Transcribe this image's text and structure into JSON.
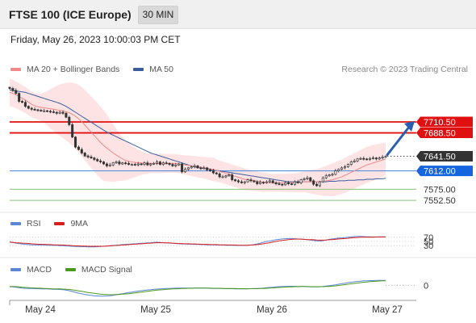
{
  "header": {
    "title": "FTSE 100 (ICE Europe)",
    "timeframe": "30 MIN"
  },
  "datetime": "Friday, May 26, 2023 10:00:03 PM CET",
  "research": "Research © 2023 Trading Central",
  "legends": {
    "price": [
      {
        "label": "MA 20 + Bollinger Bands",
        "color": "#f08a8a"
      },
      {
        "label": "MA 50",
        "color": "#3b5f9e"
      }
    ],
    "rsi": [
      {
        "label": "RSI",
        "color": "#5b86d6"
      },
      {
        "label": "9MA",
        "color": "#d81e1e"
      }
    ],
    "macd": [
      {
        "label": "MACD",
        "color": "#5b86d6"
      },
      {
        "label": "MACD Signal",
        "color": "#4a9a1e"
      }
    ]
  },
  "colors": {
    "resistance": "#e01010",
    "support": "#8bc37a",
    "pivot": "#5b8fe0",
    "band_fill": "#fde0e0",
    "candle": "#333333",
    "arrow": "#2a5fb0",
    "current_tag": "#333333",
    "pivot_tag": "#1565e0"
  },
  "chart_data": [
    {
      "type": "candlestick",
      "title": "FTSE 100 (ICE Europe) 30 MIN",
      "x_ticks": [
        "May 24",
        "May 25",
        "May 26",
        "May 27"
      ],
      "ylim": [
        7530,
        7800
      ],
      "levels": [
        {
          "value": 7710.5,
          "label": "7710.50",
          "kind": "resistance"
        },
        {
          "value": 7688.5,
          "label": "7688.50",
          "kind": "resistance"
        },
        {
          "value": 7641.5,
          "label": "7641.50",
          "kind": "current"
        },
        {
          "value": 7612.0,
          "label": "7612.00",
          "kind": "pivot"
        },
        {
          "value": 7575.0,
          "label": "7575.00",
          "kind": "support"
        },
        {
          "value": 7552.5,
          "label": "7552.50",
          "kind": "support"
        }
      ],
      "close": [
        7778,
        7774,
        7768,
        7752,
        7750,
        7742,
        7738,
        7736,
        7735,
        7734,
        7733,
        7733,
        7732,
        7731,
        7730,
        7728,
        7730,
        7728,
        7720,
        7705,
        7680,
        7660,
        7655,
        7648,
        7642,
        7640,
        7638,
        7635,
        7632,
        7630,
        7626,
        7622,
        7624,
        7628,
        7630,
        7626,
        7628,
        7627,
        7625,
        7625,
        7624,
        7626,
        7625,
        7628,
        7624,
        7626,
        7627,
        7630,
        7625,
        7628,
        7627,
        7625,
        7622,
        7624,
        7626,
        7610,
        7615,
        7618,
        7620,
        7622,
        7618,
        7617,
        7618,
        7614,
        7612,
        7608,
        7606,
        7600,
        7600,
        7602,
        7604,
        7594,
        7592,
        7590,
        7588,
        7590,
        7594,
        7592,
        7590,
        7586,
        7589,
        7588,
        7590,
        7592,
        7588,
        7586,
        7585,
        7584,
        7588,
        7586,
        7585,
        7590,
        7588,
        7594,
        7596,
        7598,
        7592,
        7585,
        7582,
        7590,
        7598,
        7602,
        7604,
        7605,
        7612,
        7615,
        7618,
        7620,
        7625,
        7630,
        7632,
        7636,
        7637,
        7636,
        7635,
        7637,
        7638,
        7636,
        7638,
        7640,
        7641
      ],
      "ma20": [
        7770,
        7768,
        7765,
        7762,
        7758,
        7755,
        7750,
        7746,
        7743,
        7741,
        7740,
        7739,
        7738,
        7737,
        7736,
        7735,
        7734,
        7733,
        7731,
        7729,
        7726,
        7722,
        7717,
        7711,
        7704,
        7697,
        7690,
        7683,
        7676,
        7669,
        7663,
        7658,
        7653,
        7648,
        7644,
        7640,
        7636,
        7633,
        7631,
        7630,
        7629,
        7628,
        7628,
        7627,
        7627,
        7627,
        7627,
        7627,
        7627,
        7627,
        7627,
        7627,
        7627,
        7627,
        7626,
        7625,
        7624,
        7623,
        7622,
        7621,
        7620,
        7619,
        7618,
        7617,
        7616,
        7615,
        7613,
        7611,
        7609,
        7607,
        7605,
        7603,
        7601,
        7599,
        7597,
        7595,
        7594,
        7593,
        7592,
        7591,
        7590,
        7589,
        7589,
        7588,
        7588,
        7588,
        7588,
        7588,
        7588,
        7588,
        7588,
        7588,
        7588,
        7589,
        7590,
        7590,
        7590,
        7590,
        7590,
        7590,
        7591,
        7592,
        7593,
        7594,
        7596,
        7598,
        7600,
        7603,
        7606,
        7609,
        7612,
        7615,
        7618,
        7621,
        7624,
        7626,
        7628,
        7630,
        7632,
        7634,
        7636
      ],
      "ma50": [
        7775,
        7774,
        7773,
        7772,
        7771,
        7770,
        7768,
        7766,
        7764,
        7762,
        7760,
        7758,
        7756,
        7754,
        7752,
        7750,
        7748,
        7745,
        7742,
        7738,
        7734,
        7730,
        7726,
        7722,
        7718,
        7714,
        7710,
        7706,
        7702,
        7698,
        7694,
        7690,
        7687,
        7684,
        7681,
        7678,
        7675,
        7672,
        7669,
        7666,
        7663,
        7660,
        7657,
        7654,
        7651,
        7648,
        7646,
        7644,
        7642,
        7640,
        7638,
        7636,
        7634,
        7632,
        7630,
        7628,
        7626,
        7624,
        7622,
        7620,
        7619,
        7618,
        7617,
        7616,
        7615,
        7614,
        7613,
        7612,
        7611,
        7610,
        7609,
        7608,
        7607,
        7606,
        7605,
        7604,
        7603,
        7602,
        7601,
        7600,
        7599,
        7598,
        7597,
        7596,
        7595,
        7594,
        7593,
        7592,
        7591,
        7590,
        7590,
        7590,
        7590,
        7590,
        7590,
        7590,
        7590,
        7590,
        7590,
        7590,
        7590,
        7590,
        7591,
        7591,
        7591,
        7592,
        7592,
        7592,
        7593,
        7593,
        7593,
        7594,
        7594,
        7594,
        7595,
        7595,
        7595,
        7596,
        7596,
        7596,
        7597
      ]
    },
    {
      "type": "line",
      "title": "RSI",
      "yticks": [
        70,
        50,
        30
      ],
      "ylim": [
        0,
        100
      ],
      "series": [
        {
          "name": "RSI",
          "values": [
            48,
            45,
            42,
            40,
            38,
            36,
            35,
            34,
            34,
            33,
            33,
            33,
            32,
            32,
            31,
            31,
            30,
            30,
            29,
            28,
            27,
            26,
            26,
            25,
            25,
            24,
            24,
            24,
            25,
            26,
            27,
            28,
            30,
            31,
            32,
            33,
            35,
            36,
            37,
            38,
            39,
            40,
            41,
            42,
            43,
            44,
            45,
            46,
            45,
            44,
            43,
            42,
            41,
            40,
            39,
            38,
            38,
            37,
            37,
            36,
            36,
            35,
            35,
            34,
            34,
            34,
            33,
            33,
            33,
            32,
            32,
            32,
            31,
            31,
            31,
            31,
            32,
            33,
            35,
            38,
            42,
            46,
            50,
            52,
            55,
            58,
            60,
            62,
            63,
            64,
            64,
            63,
            62,
            61,
            60,
            59,
            57,
            55,
            53,
            52,
            54,
            57,
            60,
            62,
            64,
            66,
            67,
            68,
            70,
            72,
            73,
            74,
            74,
            73,
            72,
            72,
            71,
            71,
            72,
            72,
            72
          ]
        },
        {
          "name": "9MA",
          "values": [
            46,
            45,
            44,
            43,
            42,
            41,
            40,
            39,
            38,
            37,
            36,
            36,
            35,
            35,
            34,
            34,
            33,
            33,
            32,
            31,
            30,
            29,
            29,
            28,
            28,
            27,
            27,
            27,
            27,
            27,
            27,
            28,
            29,
            30,
            31,
            32,
            33,
            34,
            35,
            36,
            37,
            38,
            39,
            40,
            41,
            42,
            43,
            44,
            44,
            44,
            43,
            43,
            42,
            41,
            40,
            40,
            39,
            39,
            38,
            38,
            37,
            37,
            36,
            36,
            35,
            35,
            35,
            34,
            34,
            34,
            33,
            33,
            33,
            32,
            32,
            32,
            32,
            33,
            34,
            35,
            37,
            39,
            42,
            44,
            47,
            50,
            53,
            55,
            57,
            59,
            60,
            61,
            61,
            61,
            60,
            59,
            59,
            58,
            57,
            56,
            56,
            57,
            58,
            59,
            60,
            62,
            63,
            64,
            65,
            67,
            68,
            69,
            70,
            70,
            70,
            70,
            70,
            71,
            71,
            71,
            71
          ]
        }
      ]
    },
    {
      "type": "line",
      "title": "MACD",
      "yticks": [
        0
      ],
      "ylim": [
        -10,
        8
      ],
      "series": [
        {
          "name": "MACD",
          "values": [
            -1,
            -1.2,
            -1.5,
            -1.8,
            -2,
            -2.2,
            -2.3,
            -2.4,
            -2.5,
            -2.5,
            -2.6,
            -2.6,
            -2.7,
            -2.8,
            -2.9,
            -3,
            -3.1,
            -3.2,
            -3.5,
            -4,
            -4.6,
            -5.2,
            -5.8,
            -6.3,
            -6.8,
            -7.2,
            -7.5,
            -7.7,
            -7.9,
            -8,
            -8,
            -7.9,
            -7.7,
            -7.4,
            -7,
            -6.6,
            -6.2,
            -5.8,
            -5.4,
            -5,
            -4.6,
            -4.3,
            -4,
            -3.7,
            -3.4,
            -3.2,
            -3,
            -2.8,
            -2.6,
            -2.5,
            -2.4,
            -2.3,
            -2.2,
            -2.1,
            -2,
            -2,
            -2,
            -2,
            -2,
            -2,
            -2,
            -2.1,
            -2.1,
            -2.2,
            -2.2,
            -2.3,
            -2.3,
            -2.4,
            -2.4,
            -2.5,
            -2.5,
            -2.5,
            -2.6,
            -2.6,
            -2.6,
            -2.6,
            -2.6,
            -2.5,
            -2.4,
            -2.3,
            -2.2,
            -2,
            -1.8,
            -1.6,
            -1.4,
            -1.2,
            -1,
            -0.9,
            -0.8,
            -0.7,
            -0.7,
            -0.7,
            -0.8,
            -0.8,
            -0.9,
            -1,
            -1.1,
            -1.2,
            -1.2,
            -1.1,
            -0.9,
            -0.6,
            -0.3,
            0,
            0.4,
            0.8,
            1.2,
            1.6,
            2,
            2.3,
            2.6,
            2.9,
            3.1,
            3.3,
            3.4,
            3.5,
            3.5,
            3.6,
            3.6,
            3.6,
            3.6
          ]
        },
        {
          "name": "MACD Signal",
          "values": [
            -0.8,
            -0.9,
            -1,
            -1.2,
            -1.4,
            -1.6,
            -1.7,
            -1.9,
            -2,
            -2.1,
            -2.2,
            -2.3,
            -2.4,
            -2.5,
            -2.6,
            -2.6,
            -2.7,
            -2.8,
            -2.9,
            -3.1,
            -3.4,
            -3.7,
            -4.1,
            -4.5,
            -4.9,
            -5.3,
            -5.7,
            -6,
            -6.3,
            -6.6,
            -6.8,
            -6.9,
            -7,
            -7,
            -6.9,
            -6.8,
            -6.6,
            -6.4,
            -6.2,
            -5.9,
            -5.6,
            -5.3,
            -5,
            -4.7,
            -4.4,
            -4.1,
            -3.9,
            -3.6,
            -3.4,
            -3.2,
            -3,
            -2.8,
            -2.7,
            -2.6,
            -2.5,
            -2.4,
            -2.3,
            -2.2,
            -2.2,
            -2.1,
            -2.1,
            -2.1,
            -2.1,
            -2.1,
            -2.1,
            -2.2,
            -2.2,
            -2.2,
            -2.3,
            -2.3,
            -2.4,
            -2.4,
            -2.4,
            -2.5,
            -2.5,
            -2.5,
            -2.5,
            -2.5,
            -2.5,
            -2.5,
            -2.4,
            -2.3,
            -2.2,
            -2.1,
            -1.9,
            -1.8,
            -1.6,
            -1.5,
            -1.3,
            -1.2,
            -1.1,
            -1,
            -1,
            -0.9,
            -0.9,
            -0.9,
            -1,
            -1,
            -1,
            -1,
            -1,
            -0.9,
            -0.8,
            -0.6,
            -0.4,
            -0.1,
            0.2,
            0.5,
            0.8,
            1.1,
            1.4,
            1.7,
            2,
            2.3,
            2.5,
            2.7,
            2.9,
            3.1,
            3.2,
            3.3,
            3.4
          ]
        }
      ]
    }
  ]
}
